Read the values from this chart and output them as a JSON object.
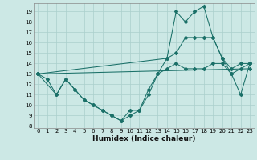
{
  "xlabel": "Humidex (Indice chaleur)",
  "xlim": [
    -0.5,
    23.5
  ],
  "ylim": [
    7.8,
    19.8
  ],
  "yticks": [
    8,
    9,
    10,
    11,
    12,
    13,
    14,
    15,
    16,
    17,
    18,
    19
  ],
  "xticks": [
    0,
    1,
    2,
    3,
    4,
    5,
    6,
    7,
    8,
    9,
    10,
    11,
    12,
    13,
    14,
    15,
    16,
    17,
    18,
    19,
    20,
    21,
    22,
    23
  ],
  "bg_color": "#cce8e5",
  "grid_color": "#aacfcc",
  "line_color": "#1a7068",
  "series": [
    {
      "x": [
        0,
        1,
        2,
        3,
        4,
        5,
        6,
        7,
        8,
        9,
        10,
        11,
        12,
        13,
        14,
        15,
        16,
        17,
        18,
        19,
        20,
        21,
        22,
        23
      ],
      "y": [
        13,
        12.5,
        11,
        12.5,
        11.5,
        10.5,
        10,
        9.5,
        9,
        8.5,
        9.5,
        9.5,
        11.5,
        13,
        14.5,
        19,
        18,
        19,
        19.5,
        16.5,
        14.5,
        13,
        11,
        14
      ]
    },
    {
      "x": [
        0,
        23
      ],
      "y": [
        13,
        13.5
      ]
    },
    {
      "x": [
        0,
        14,
        15,
        16,
        17,
        18,
        19,
        20,
        21,
        22,
        23
      ],
      "y": [
        13,
        14.5,
        15,
        16.5,
        16.5,
        16.5,
        16.5,
        14.5,
        13.5,
        14,
        14
      ]
    },
    {
      "x": [
        0,
        2,
        3,
        4,
        5,
        6,
        7,
        8,
        9,
        10,
        11,
        12,
        13,
        14,
        15,
        16,
        17,
        18,
        19,
        20,
        21,
        22,
        23
      ],
      "y": [
        13,
        11,
        12.5,
        11.5,
        10.5,
        10,
        9.5,
        9,
        8.5,
        9,
        9.5,
        11,
        13,
        13.5,
        14,
        13.5,
        13.5,
        13.5,
        14,
        14,
        13,
        13.5,
        14
      ]
    }
  ]
}
